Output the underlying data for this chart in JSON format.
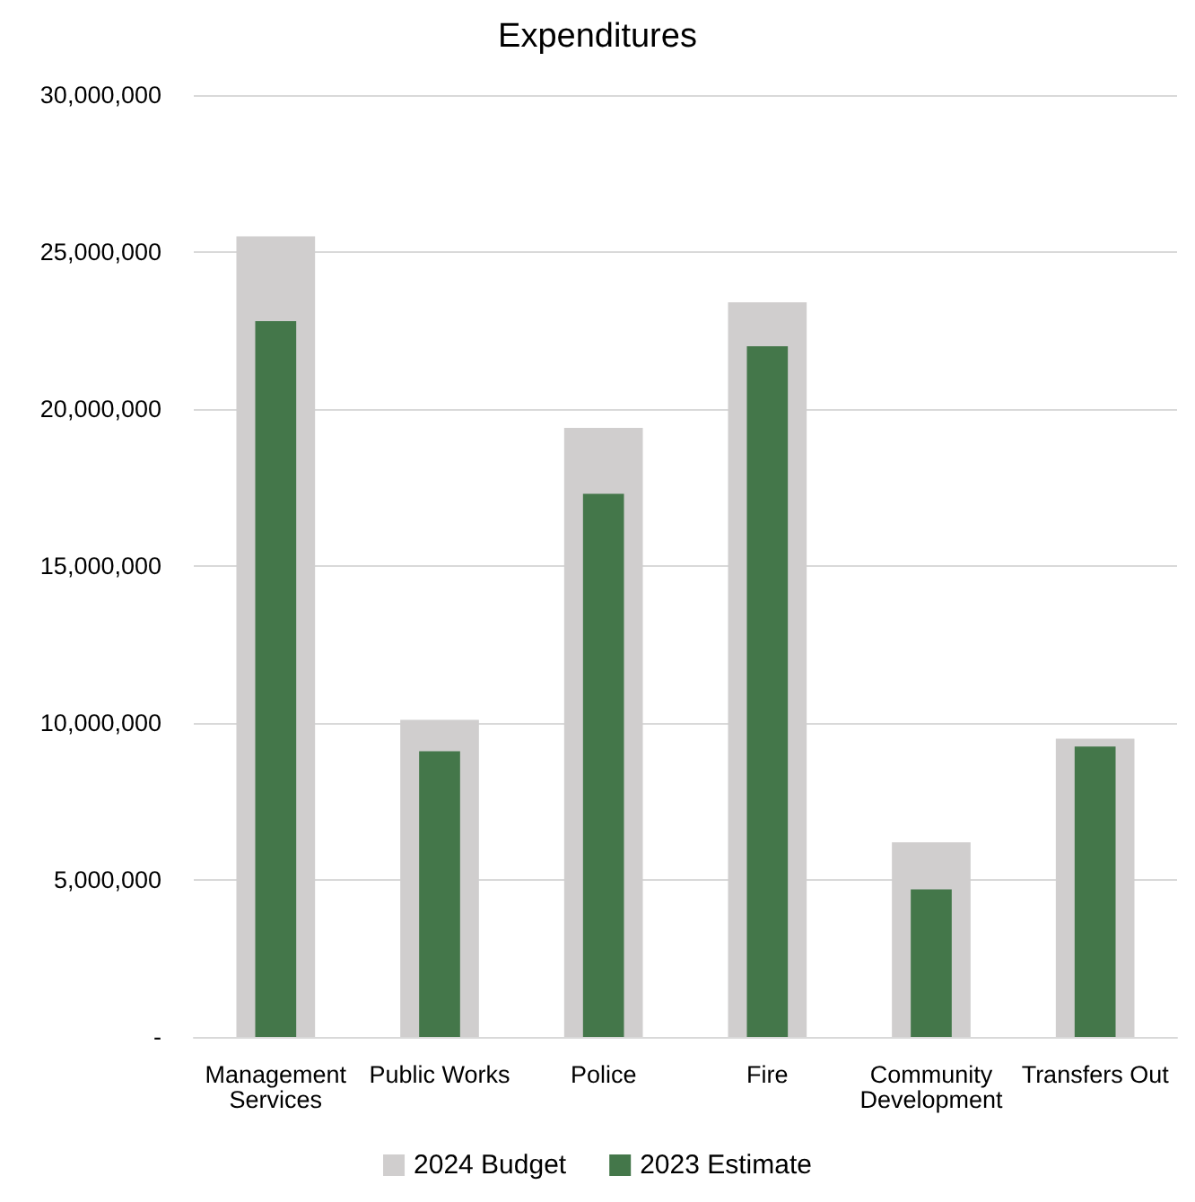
{
  "chart_data": {
    "type": "bar",
    "title": "Expenditures",
    "categories": [
      "Management Services",
      "Public Works",
      "Police",
      "Fire",
      "Community Development",
      "Transfers Out"
    ],
    "series": [
      {
        "name": "2024 Budget",
        "color": "#d0cece",
        "values": [
          25500000,
          10100000,
          19400000,
          23400000,
          6200000,
          9500000
        ]
      },
      {
        "name": "2023 Estimate",
        "color": "#44774a",
        "values": [
          22800000,
          9100000,
          17300000,
          22000000,
          4700000,
          9250000
        ]
      }
    ],
    "ylim": [
      0,
      30000000
    ],
    "yticks": [
      {
        "value": 0,
        "label": "-"
      },
      {
        "value": 5000000,
        "label": "5,000,000"
      },
      {
        "value": 10000000,
        "label": "10,000,000"
      },
      {
        "value": 15000000,
        "label": "15,000,000"
      },
      {
        "value": 20000000,
        "label": "20,000,000"
      },
      {
        "value": 25000000,
        "label": "25,000,000"
      },
      {
        "value": 30000000,
        "label": "30,000,000"
      }
    ],
    "grid": "y",
    "legend": "bottom"
  }
}
